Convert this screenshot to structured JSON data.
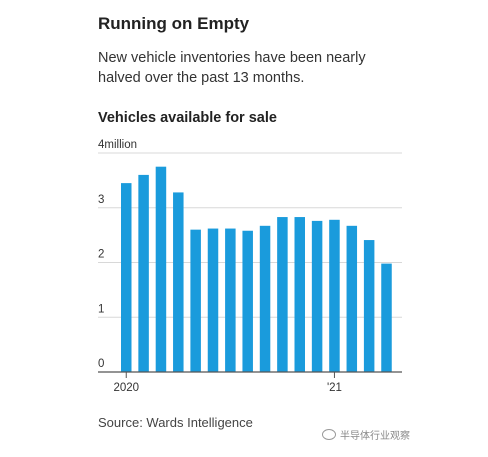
{
  "header": {
    "title": "Running on Empty",
    "subtitle": "New vehicle inventories have been nearly halved over the past 13 months."
  },
  "source": "Source: Wards Intelligence",
  "watermark": "半导体行业观察",
  "colors": {
    "bar": "#1a9bdc",
    "grid": "#d8d8d8",
    "axis": "#555555"
  },
  "chart_data": {
    "type": "bar",
    "title": "Vehicles available for sale",
    "xlabel": "",
    "ylabel": "",
    "ylim": [
      0,
      4
    ],
    "yticks": [
      {
        "value": 0,
        "label": "0"
      },
      {
        "value": 1,
        "label": "1"
      },
      {
        "value": 2,
        "label": "2"
      },
      {
        "value": 3,
        "label": "3"
      },
      {
        "value": 4,
        "label": "4million"
      }
    ],
    "xticks": [
      {
        "index": 0,
        "label": "2020"
      },
      {
        "index": 12,
        "label": "'21"
      }
    ],
    "grid": true,
    "values": [
      3.45,
      3.6,
      3.75,
      3.28,
      2.6,
      2.62,
      2.62,
      2.58,
      2.67,
      2.83,
      2.83,
      2.76,
      2.78,
      2.67,
      2.41,
      1.98
    ]
  }
}
